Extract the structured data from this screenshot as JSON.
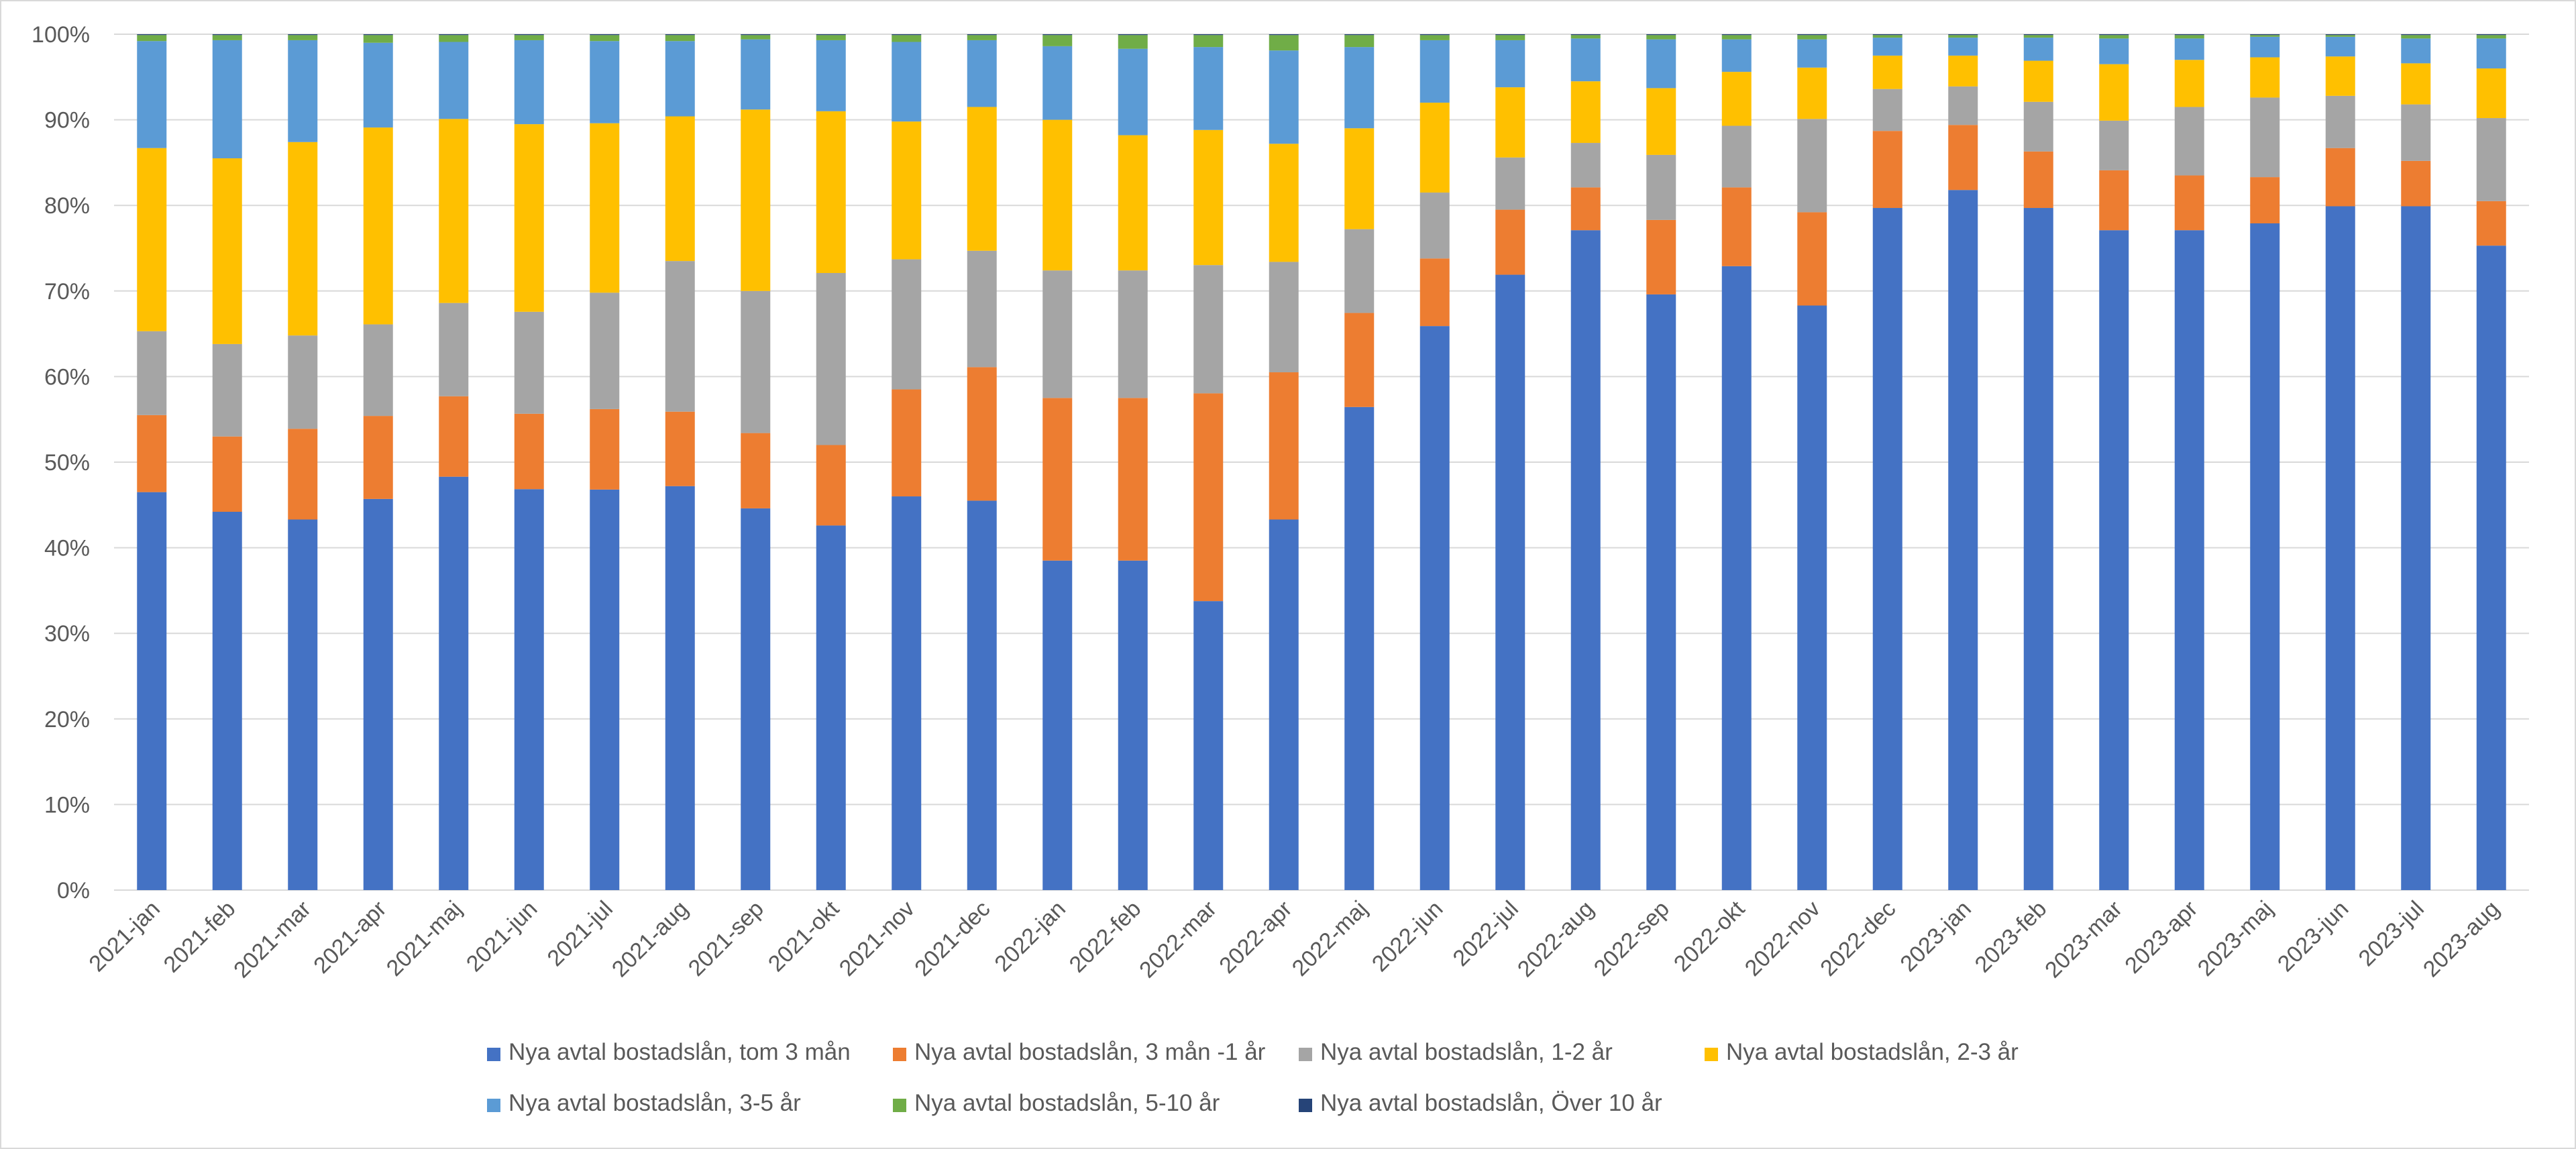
{
  "chart_data": {
    "type": "bar",
    "stacked": true,
    "normalized": true,
    "ylim": [
      0,
      100
    ],
    "y_ticks": [
      "0%",
      "10%",
      "20%",
      "30%",
      "40%",
      "50%",
      "60%",
      "70%",
      "80%",
      "90%",
      "100%"
    ],
    "grid": "horizontal",
    "legend_position": "bottom",
    "categories": [
      "2021-jan",
      "2021-feb",
      "2021-mar",
      "2021-apr",
      "2021-maj",
      "2021-jun",
      "2021-jul",
      "2021-aug",
      "2021-sep",
      "2021-okt",
      "2021-nov",
      "2021-dec",
      "2022-jan",
      "2022-feb",
      "2022-mar",
      "2022-apr",
      "2022-maj",
      "2022-jun",
      "2022-jul",
      "2022-aug",
      "2022-sep",
      "2022-okt",
      "2022-nov",
      "2022-dec",
      "2023-jan",
      "2023-feb",
      "2023-mar",
      "2023-apr",
      "2023-maj",
      "2023-jun",
      "2023-jul",
      "2023-aug"
    ],
    "series": [
      {
        "name": "Nya avtal bostadslån, tom 3 mån",
        "color": "#4472C4",
        "values": [
          46.5,
          44.2,
          43.3,
          45.7,
          48.3,
          46.8,
          46.8,
          47.2,
          44.6,
          42.6,
          46.0,
          45.5,
          38.5,
          38.5,
          33.8,
          43.3,
          56.5,
          65.9,
          71.9,
          77.1,
          69.6,
          72.9,
          68.3,
          79.7,
          81.8,
          79.7,
          77.1,
          77.1,
          77.9,
          79.9,
          79.9,
          75.3
        ]
      },
      {
        "name": "Nya avtal bostadslån, 3 mån -1 år",
        "color": "#ED7D31",
        "values": [
          9.0,
          8.8,
          10.6,
          9.7,
          9.4,
          8.8,
          9.4,
          8.7,
          8.8,
          9.4,
          12.5,
          15.6,
          19.0,
          19.0,
          24.3,
          17.2,
          11.0,
          7.9,
          7.6,
          5.0,
          8.7,
          9.2,
          10.9,
          9.0,
          7.6,
          6.6,
          7.0,
          6.4,
          5.4,
          6.8,
          5.3,
          5.2
        ]
      },
      {
        "name": "Nya avtal bostadslån, 1-2 år",
        "color": "#A5A5A5",
        "values": [
          9.8,
          10.8,
          10.9,
          10.7,
          10.9,
          11.9,
          13.6,
          17.6,
          16.6,
          20.1,
          15.2,
          13.6,
          14.9,
          14.9,
          15.0,
          12.9,
          9.8,
          7.7,
          6.1,
          5.2,
          7.6,
          7.2,
          10.9,
          4.9,
          4.5,
          5.8,
          5.8,
          8.0,
          9.3,
          6.1,
          6.6,
          9.7
        ]
      },
      {
        "name": "Nya avtal bostadslån, 2-3 år",
        "color": "#FFC000",
        "values": [
          21.4,
          21.7,
          22.6,
          23.0,
          21.5,
          21.9,
          19.8,
          16.9,
          21.2,
          18.9,
          16.1,
          16.8,
          17.6,
          15.8,
          15.8,
          13.8,
          11.8,
          10.5,
          8.2,
          7.2,
          7.8,
          6.3,
          6.0,
          3.9,
          3.6,
          4.8,
          6.6,
          5.5,
          4.7,
          4.6,
          4.8,
          5.8
        ]
      },
      {
        "name": "Nya avtal bostadslån, 3-5 år",
        "color": "#5B9BD5",
        "values": [
          12.5,
          13.8,
          11.9,
          9.9,
          9.0,
          9.8,
          9.6,
          8.8,
          8.2,
          8.3,
          9.3,
          7.8,
          8.6,
          10.1,
          9.7,
          10.9,
          9.5,
          7.3,
          5.5,
          5.0,
          5.7,
          3.8,
          3.3,
          2.1,
          2.1,
          2.7,
          3.0,
          2.5,
          2.4,
          2.3,
          2.9,
          3.5
        ]
      },
      {
        "name": "Nya avtal bostadslån, 5-10 år",
        "color": "#70AD47",
        "values": [
          0.7,
          0.6,
          0.6,
          0.9,
          0.8,
          0.6,
          0.7,
          0.7,
          0.5,
          0.6,
          0.8,
          0.6,
          1.3,
          1.6,
          1.4,
          1.8,
          1.4,
          0.6,
          0.6,
          0.4,
          0.5,
          0.5,
          0.5,
          0.3,
          0.3,
          0.3,
          0.4,
          0.4,
          0.2,
          0.2,
          0.4,
          0.4
        ]
      },
      {
        "name": "Nya avtal bostadslån, Över 10 år",
        "color": "#264478",
        "values": [
          0.1,
          0.1,
          0.1,
          0.1,
          0.1,
          0.1,
          0.1,
          0.1,
          0.1,
          0.1,
          0.1,
          0.1,
          0.1,
          0.1,
          0.1,
          0.1,
          0.1,
          0.1,
          0.1,
          0.1,
          0.1,
          0.1,
          0.1,
          0.1,
          0.1,
          0.1,
          0.1,
          0.1,
          0.1,
          0.1,
          0.1,
          0.1
        ]
      }
    ]
  },
  "colors": {
    "gridline": "#d9d9d9",
    "axis_text": "#595959",
    "border": "#d9d9d9"
  }
}
